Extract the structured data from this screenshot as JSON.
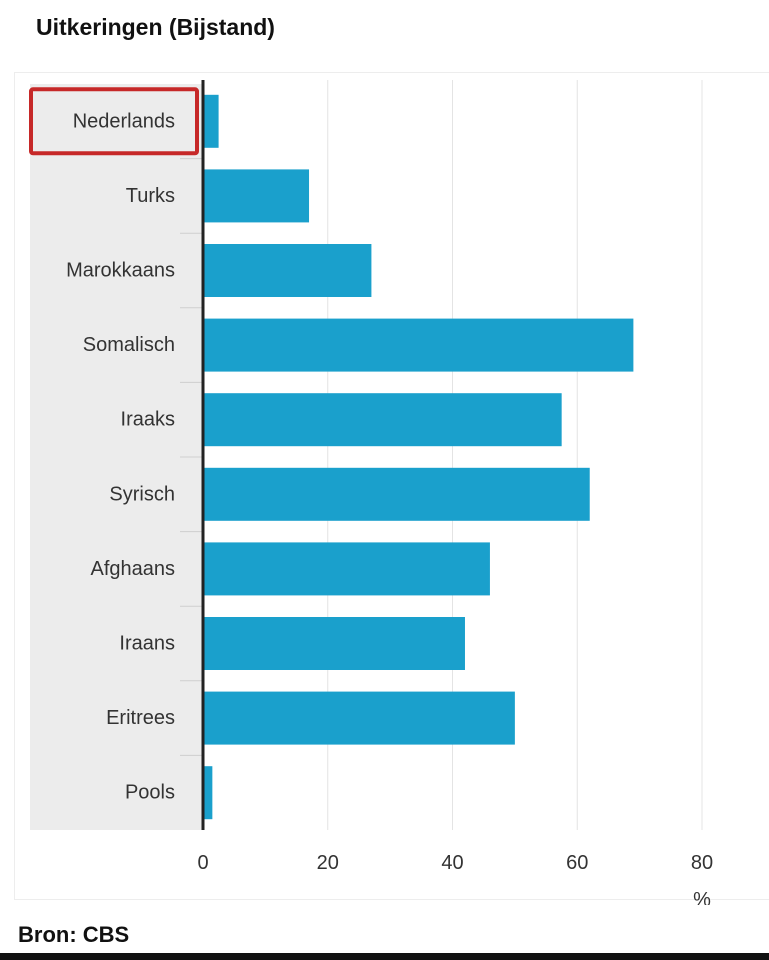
{
  "header": {
    "title": "Uitkeringen (Bijstand)"
  },
  "footer": {
    "source": "Bron: CBS"
  },
  "colors": {
    "bar": "#1aa0cc",
    "highlight": "#c62828"
  },
  "chart_data": {
    "type": "bar",
    "orientation": "horizontal",
    "title": "Uitkeringen (Bijstand)",
    "categories": [
      "Nederlands",
      "Turks",
      "Marokkaans",
      "Somalisch",
      "Iraaks",
      "Syrisch",
      "Afghaans",
      "Iraans",
      "Eritrees",
      "Pools"
    ],
    "values": [
      2.5,
      17,
      27,
      69,
      57.5,
      62,
      46,
      42,
      50,
      1.5
    ],
    "highlighted_category": "Nederlands",
    "xlabel": "%",
    "ylabel": "",
    "xlim": [
      0,
      80
    ],
    "xticks": [
      0,
      20,
      40,
      60,
      80
    ],
    "grid": true,
    "legend": "none"
  }
}
